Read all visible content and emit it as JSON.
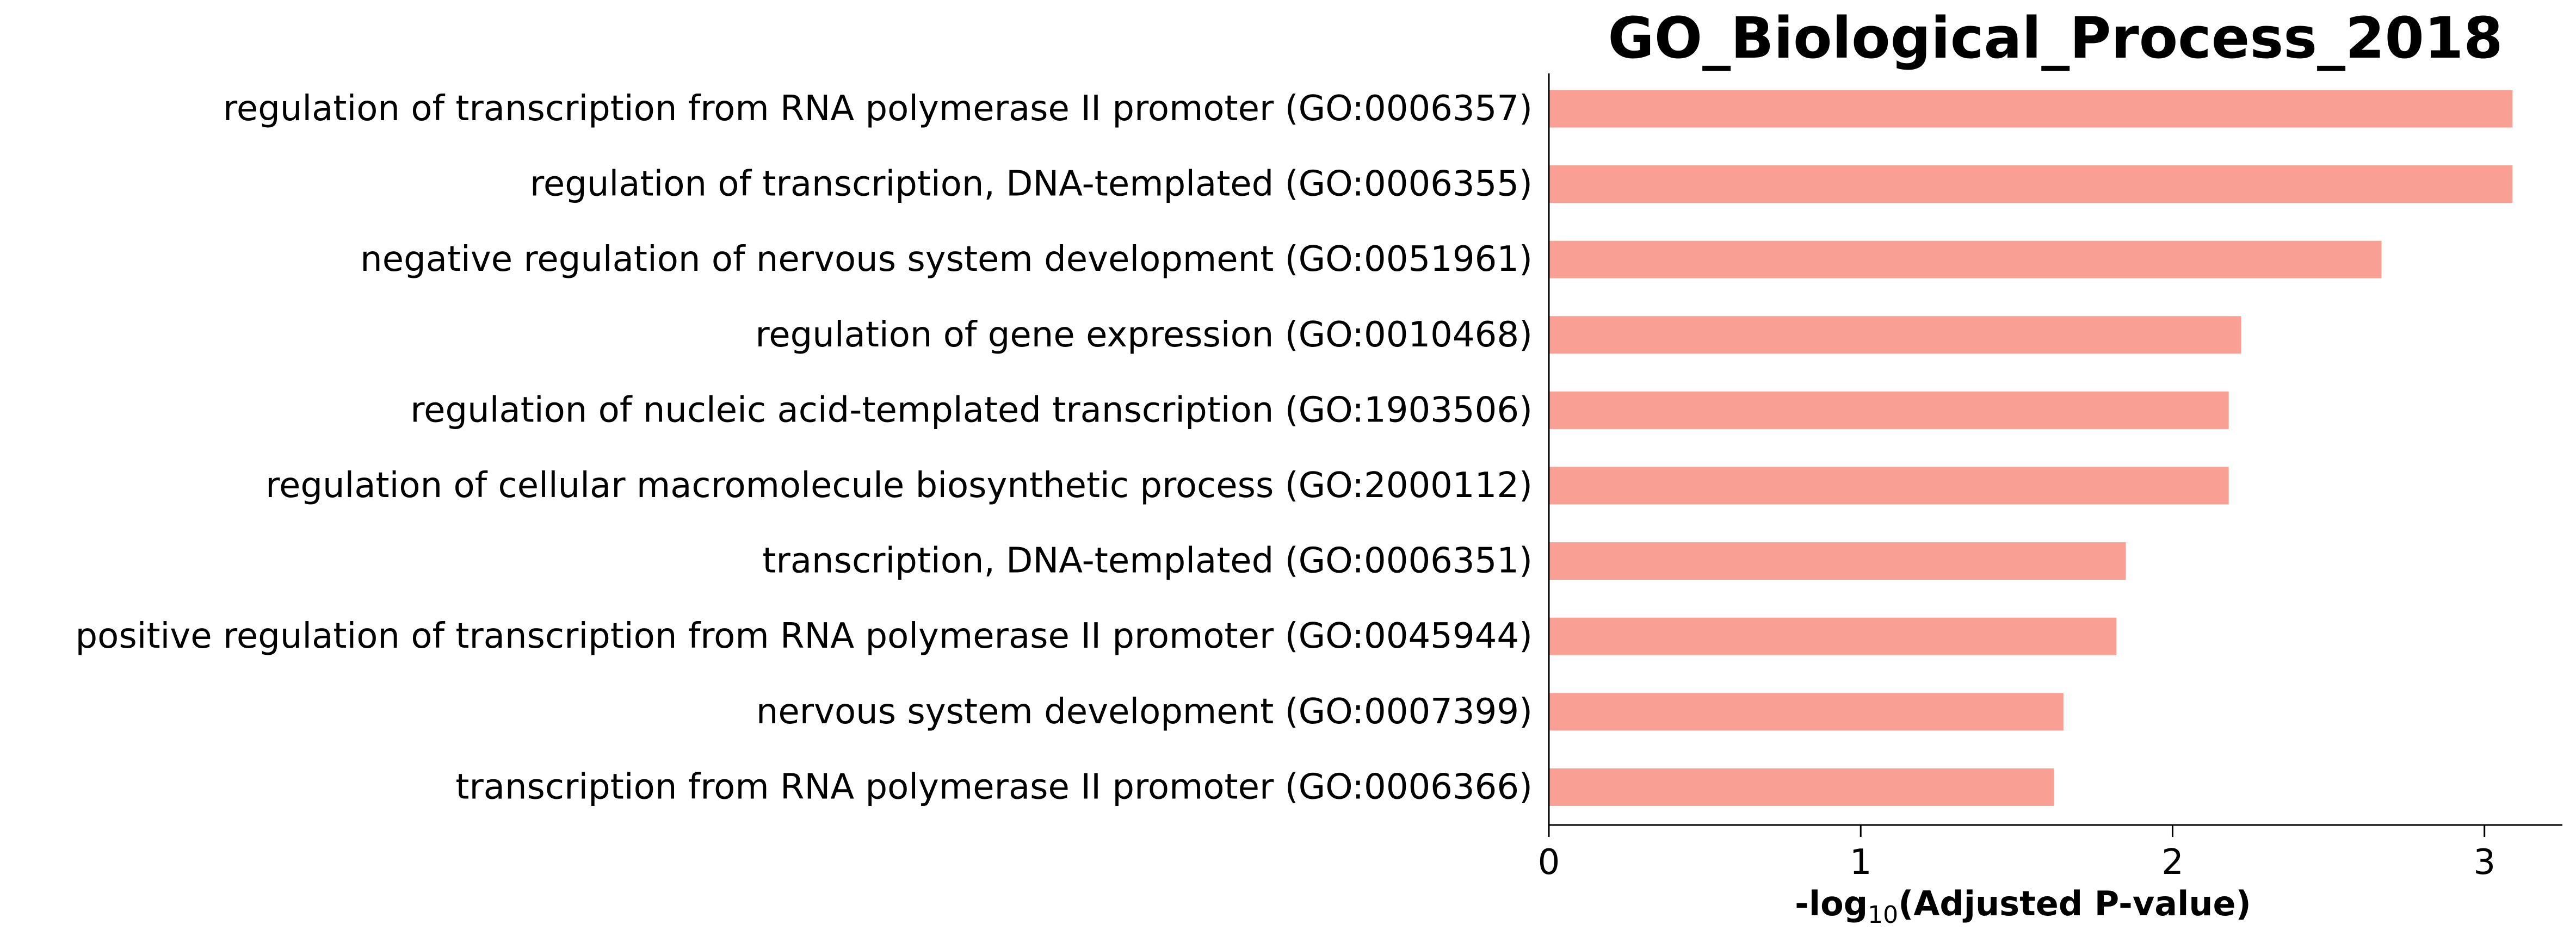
{
  "chart_data": {
    "type": "bar",
    "orientation": "horizontal",
    "title": "GO_Biological_Process_2018",
    "xlabel": {
      "prefix": "-log",
      "subscript": "10",
      "suffix": "(Adjusted P-value)"
    },
    "ylabel": "",
    "xlim": [
      0,
      3.25
    ],
    "xticks": [
      "0",
      "1",
      "2",
      "3"
    ],
    "xtick_values": [
      0,
      1,
      2,
      3
    ],
    "grid": false,
    "legend": "none",
    "bar_color": "#fa9f94",
    "categories": [
      "regulation of transcription from RNA polymerase II promoter (GO:0006357)",
      "regulation of transcription, DNA-templated (GO:0006355)",
      "negative regulation of nervous system development (GO:0051961)",
      "regulation of gene expression (GO:0010468)",
      "regulation of nucleic acid-templated transcription (GO:1903506)",
      "regulation of cellular macromolecule biosynthetic process (GO:2000112)",
      "transcription, DNA-templated (GO:0006351)",
      "positive regulation of transcription from RNA polymerase II promoter (GO:0045944)",
      "nervous system development (GO:0007399)",
      "transcription from RNA polymerase II promoter (GO:0006366)"
    ],
    "values": [
      3.09,
      3.09,
      2.67,
      2.22,
      2.18,
      2.18,
      1.85,
      1.82,
      1.65,
      1.62
    ]
  }
}
